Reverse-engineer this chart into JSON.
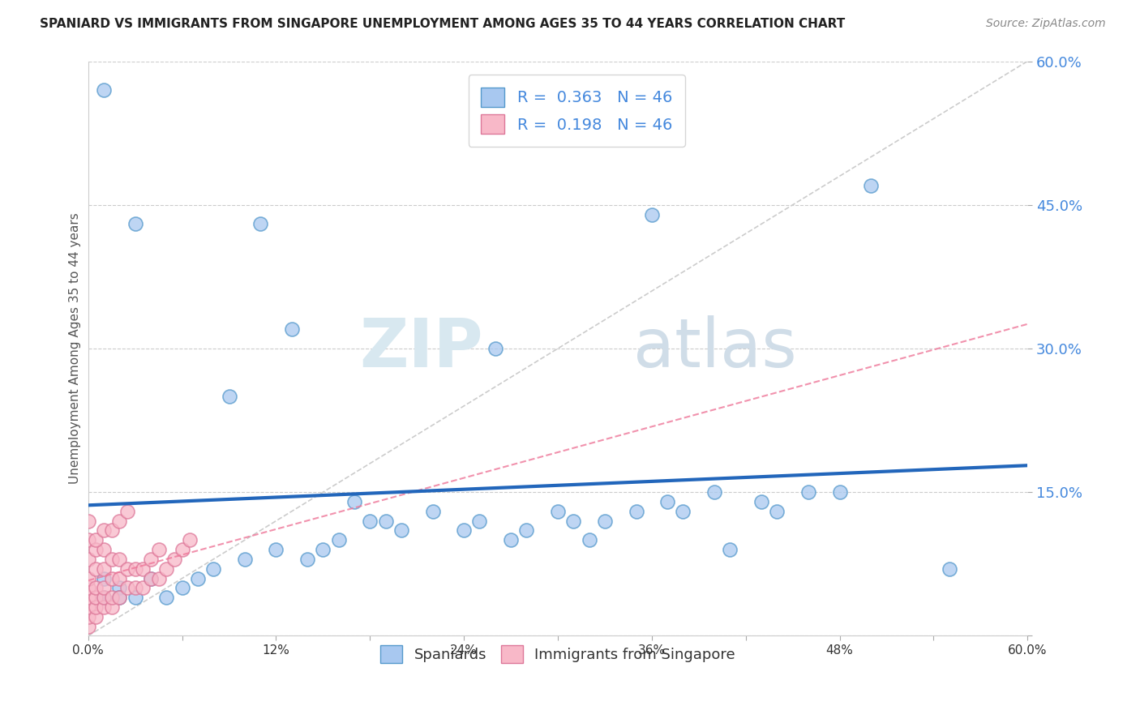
{
  "title": "SPANIARD VS IMMIGRANTS FROM SINGAPORE UNEMPLOYMENT AMONG AGES 35 TO 44 YEARS CORRELATION CHART",
  "source": "Source: ZipAtlas.com",
  "ylabel": "Unemployment Among Ages 35 to 44 years",
  "xmin": 0.0,
  "xmax": 0.6,
  "ymin": 0.0,
  "ymax": 0.6,
  "yticks": [
    0.0,
    0.15,
    0.3,
    0.45,
    0.6
  ],
  "r_spaniards": 0.363,
  "n_spaniards": 46,
  "r_singapore": 0.198,
  "n_singapore": 46,
  "color_spaniards": "#a8c8f0",
  "color_singapore": "#f8b8c8",
  "line_color_spaniards": "#2266bb",
  "line_color_singapore": "#ee7799",
  "watermark_zip": "ZIP",
  "watermark_atlas": "atlas",
  "background_color": "#ffffff",
  "grid_color": "#cccccc",
  "spaniards_x": [
    0.01,
    0.01,
    0.01,
    0.02,
    0.02,
    0.03,
    0.04,
    0.05,
    0.06,
    0.07,
    0.08,
    0.09,
    0.1,
    0.11,
    0.12,
    0.13,
    0.14,
    0.15,
    0.16,
    0.17,
    0.18,
    0.19,
    0.2,
    0.22,
    0.24,
    0.25,
    0.26,
    0.27,
    0.28,
    0.3,
    0.31,
    0.32,
    0.33,
    0.35,
    0.36,
    0.37,
    0.38,
    0.4,
    0.41,
    0.43,
    0.44,
    0.46,
    0.48,
    0.5,
    0.03,
    0.55
  ],
  "spaniards_y": [
    0.04,
    0.06,
    0.57,
    0.05,
    0.04,
    0.04,
    0.06,
    0.04,
    0.05,
    0.06,
    0.07,
    0.25,
    0.08,
    0.43,
    0.09,
    0.32,
    0.08,
    0.09,
    0.1,
    0.14,
    0.12,
    0.12,
    0.11,
    0.13,
    0.11,
    0.12,
    0.3,
    0.1,
    0.11,
    0.13,
    0.12,
    0.1,
    0.12,
    0.13,
    0.44,
    0.14,
    0.13,
    0.15,
    0.09,
    0.14,
    0.13,
    0.15,
    0.15,
    0.47,
    0.43,
    0.07
  ],
  "singapore_x": [
    0.0,
    0.0,
    0.0,
    0.0,
    0.0,
    0.0,
    0.0,
    0.0,
    0.005,
    0.005,
    0.005,
    0.005,
    0.005,
    0.005,
    0.01,
    0.01,
    0.01,
    0.01,
    0.01,
    0.015,
    0.015,
    0.015,
    0.015,
    0.02,
    0.02,
    0.02,
    0.025,
    0.025,
    0.03,
    0.03,
    0.035,
    0.035,
    0.04,
    0.04,
    0.045,
    0.045,
    0.05,
    0.055,
    0.06,
    0.065,
    0.0,
    0.005,
    0.01,
    0.015,
    0.02,
    0.025
  ],
  "singapore_y": [
    0.01,
    0.02,
    0.03,
    0.04,
    0.05,
    0.06,
    0.08,
    0.1,
    0.02,
    0.03,
    0.04,
    0.05,
    0.07,
    0.09,
    0.03,
    0.04,
    0.05,
    0.07,
    0.09,
    0.03,
    0.04,
    0.06,
    0.08,
    0.04,
    0.06,
    0.08,
    0.05,
    0.07,
    0.05,
    0.07,
    0.05,
    0.07,
    0.06,
    0.08,
    0.06,
    0.09,
    0.07,
    0.08,
    0.09,
    0.1,
    0.12,
    0.1,
    0.11,
    0.11,
    0.12,
    0.13
  ]
}
